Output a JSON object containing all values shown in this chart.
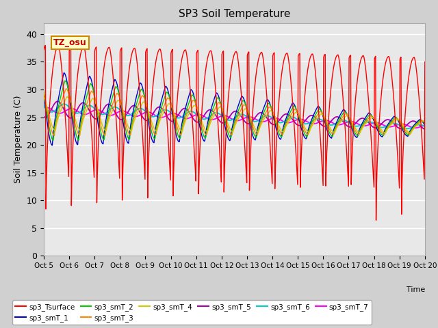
{
  "title": "SP3 Soil Temperature",
  "xlabel": "Time",
  "ylabel": "Soil Temperature (C)",
  "ylim": [
    0,
    42
  ],
  "tz_label": "TZ_osu",
  "x_tick_labels": [
    "Oct 5",
    "Oct 6",
    "Oct 7",
    "Oct 8",
    "Oct 9",
    "Oct 10",
    "Oct 11",
    "Oct 12",
    "Oct 13",
    "Oct 14",
    "Oct 15",
    "Oct 16",
    "Oct 17",
    "Oct 18",
    "Oct 19",
    "Oct 20"
  ],
  "series_colors": {
    "sp3_Tsurface": "#ff0000",
    "sp3_smT_1": "#0000cc",
    "sp3_smT_2": "#00cc00",
    "sp3_smT_3": "#ff8800",
    "sp3_smT_4": "#cccc00",
    "sp3_smT_5": "#aa00aa",
    "sp3_smT_6": "#00cccc",
    "sp3_smT_7": "#ff00ff"
  },
  "figsize": [
    6.4,
    4.8
  ],
  "dpi": 100
}
